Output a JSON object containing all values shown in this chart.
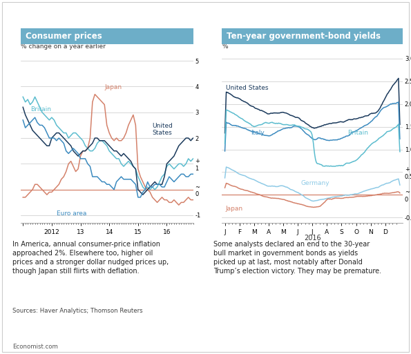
{
  "chart1_title": "Consumer prices",
  "chart1_subtitle": "% change on a year earlier",
  "chart1_note": "In America, annual consumer-price inflation\napproached 2%. Elsewhere too, higher oil\nprices and a stronger dollar nudged prices up,\nthough Japan still flirts with deflation.",
  "chart1_source": "Sources: Haver Analytics; Thomson Reuters",
  "chart2_title": "Ten-year government-bond yields",
  "chart2_subtitle": "%",
  "chart2_note": "Some analysts declared an end to the 30-year\nbull market in government bonds as yields\npicked up at last, most notably after Donald\nTrump’s election victory. They may be premature.",
  "footer": "Economist.com",
  "title_bg": "#6daec8",
  "title_fg": "#ffffff",
  "line_colors": {
    "britain_cpi": "#5bbcce",
    "japan_cpi": "#d4816a",
    "us_cpi": "#1b3a5c",
    "euro_cpi": "#3b8abf",
    "us_bond": "#1b3a5c",
    "italy_bond": "#3b8abf",
    "britain_bond": "#5bbcce",
    "germany_bond": "#8ecae6",
    "japan_bond": "#d4816a"
  },
  "zero_line_color": "#d4816a",
  "grid_color": "#c8c8c8",
  "background_color": "#ffffff",
  "border_color": "#cccccc"
}
